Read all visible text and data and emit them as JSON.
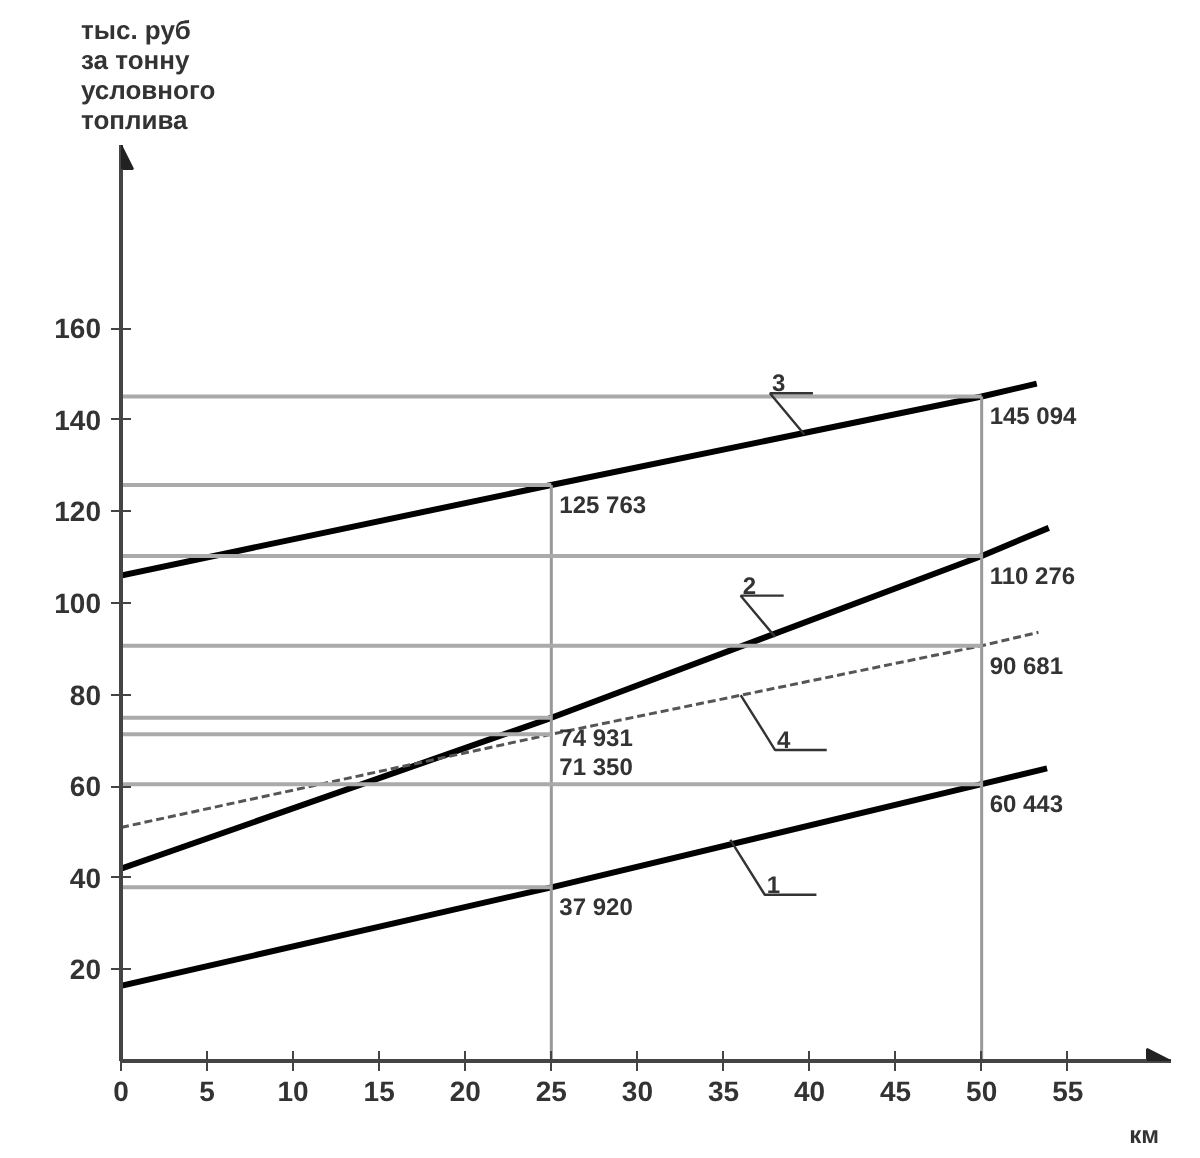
{
  "chart_data": {
    "type": "line",
    "ylabel": "тыс. руб\nза тонну\nусловного\nтоплива",
    "xlabel": "км",
    "xlim": [
      0,
      61
    ],
    "ylim": [
      0,
      200
    ],
    "xticks": [
      0,
      5,
      10,
      15,
      20,
      25,
      30,
      35,
      40,
      45,
      50,
      55
    ],
    "yticks": [
      20,
      40,
      60,
      80,
      100,
      120,
      140,
      160
    ],
    "grid": false,
    "marker": "none",
    "series": [
      {
        "color": "#000000",
        "line_style": "solid",
        "x": [
          0,
          25,
          50,
          53.8
        ],
        "values": [
          16.4,
          37.92,
          60.443,
          63.9
        ]
      },
      {
        "color": "#000000",
        "line_style": "solid",
        "x": [
          0,
          25,
          50,
          53.9
        ],
        "values": [
          42,
          74.931,
          110.276,
          116.4
        ]
      },
      {
        "color": "#000000",
        "line_style": "solid",
        "x": [
          0,
          25,
          50,
          53.2
        ],
        "values": [
          106,
          125.763,
          145.094,
          147.9
        ]
      },
      {
        "color": "#555555",
        "line_style": "dashed",
        "x": [
          0,
          25,
          50,
          53.3
        ],
        "values": [
          51,
          71.35,
          90.681,
          93.6
        ]
      }
    ],
    "annotations": [
      {
        "text": "37 920",
        "x": 25,
        "y": 37.92
      },
      {
        "text": "60 443",
        "x": 50,
        "y": 60.443
      },
      {
        "text": "74 931",
        "x": 25,
        "y": 74.931
      },
      {
        "text": "71 350",
        "x": 25,
        "y": 71.35
      },
      {
        "text": "110 276",
        "x": 50,
        "y": 110.276
      },
      {
        "text": "90 681",
        "x": 50,
        "y": 90.681
      },
      {
        "text": "125 763",
        "x": 25,
        "y": 125.763
      },
      {
        "text": "145 094",
        "x": 50,
        "y": 145.094
      },
      {
        "text": "1",
        "x": 35.4,
        "y": 48.3
      },
      {
        "text": "2",
        "x": 38,
        "y": 92.6
      },
      {
        "text": "3",
        "x": 39.7,
        "y": 136.8
      },
      {
        "text": "4",
        "x": 36,
        "y": 79.9
      }
    ]
  }
}
